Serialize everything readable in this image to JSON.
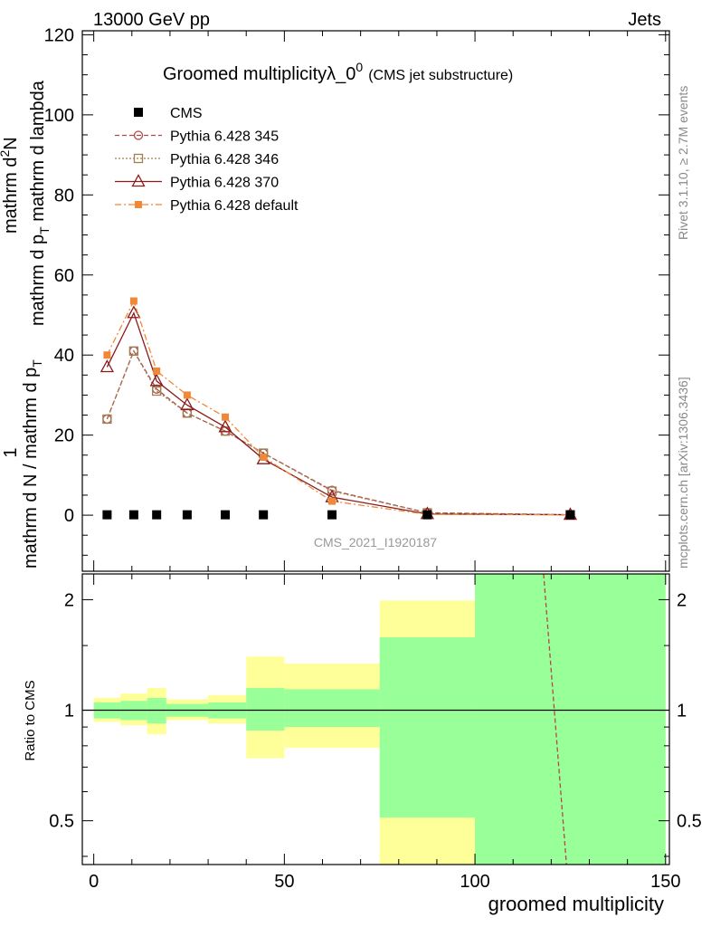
{
  "header": {
    "left": "13000 GeV pp",
    "right": "Jets"
  },
  "side_labels": {
    "rivet": "Rivet 3.1.10, ≥ 2.7M events",
    "mcplots": "mcplots.cern.ch [arXiv:1306.3436]"
  },
  "chart_data": [
    {
      "type": "line",
      "title_main": "Groomed multiplicityλ_0",
      "title_sup": "0",
      "title_sub": "(CMS jet substructure)",
      "ylabel_lines": [
        "1",
        "mathrm d N / mathrm d p",
        "T",
        "mathrm d N",
        "mathrm d p",
        "T",
        "mathrm d lambda"
      ],
      "ylabel_num": "mathrm d",
      "ylabel_num_sup": "2",
      "ylabel_num_n": "N",
      "ylabel_den_a": "mathrm d p",
      "ylabel_den_sub": "T",
      "ylabel_den_b": " mathrm d lambda",
      "ylabel_left_a": "mathrm d N / mathrm d p",
      "ylabel_left_sub": "T",
      "ylim": [
        -14,
        121
      ],
      "yticks": [
        0,
        20,
        40,
        60,
        80,
        100,
        120
      ],
      "ytick_labels": [
        "0",
        "20",
        "40",
        "60",
        "80",
        "100",
        "120"
      ],
      "watermark": "CMS_2021_I1920187",
      "x": [
        3.5,
        10.5,
        16.5,
        24.5,
        34.5,
        44.5,
        62.5,
        87.5,
        125
      ],
      "series": [
        {
          "name": "CMS",
          "values": [
            0.1,
            0.1,
            0.1,
            0.1,
            0.1,
            0.1,
            0.1,
            0.1,
            0.1
          ],
          "color": "#000000",
          "marker": "square-filled"
        },
        {
          "name": "Pythia 6.428 345",
          "values": [
            24.0,
            41.0,
            31.5,
            25.5,
            21.0,
            15.5,
            6.2,
            0.6,
            0.1
          ],
          "color": "#b2474a",
          "marker": "circle-open",
          "dash": "dashed"
        },
        {
          "name": "Pythia 6.428 346",
          "values": [
            24.0,
            41.0,
            31.0,
            25.5,
            21.0,
            15.5,
            6.0,
            0.6,
            0.1
          ],
          "color": "#a08050",
          "marker": "square-open",
          "dash": "dotted"
        },
        {
          "name": "Pythia 6.428 370",
          "values": [
            37.0,
            50.5,
            33.5,
            27.5,
            22.0,
            14.0,
            4.5,
            0.3,
            0.1
          ],
          "color": "#8b1a1a",
          "marker": "triangle-open",
          "dash": "solid"
        },
        {
          "name": "Pythia 6.428 default",
          "values": [
            40.0,
            53.5,
            36.0,
            30.0,
            24.5,
            14.5,
            3.5,
            0.2,
            0.1
          ],
          "color": "#f0883a",
          "marker": "square-filled-small",
          "dash": "dashdot"
        }
      ]
    },
    {
      "type": "area",
      "ylabel": "Ratio to CMS",
      "xlabel": "groomed multiplicity",
      "xlim": [
        -3,
        151
      ],
      "xticks": [
        0,
        50,
        100,
        150
      ],
      "xtick_labels": [
        "0",
        "50",
        "100",
        "150"
      ],
      "ylim": [
        0.38,
        2.35
      ],
      "yticks": [
        0.5,
        1,
        2
      ],
      "ytick_labels": [
        "0.5",
        "1",
        "2"
      ],
      "bin_edges": [
        0,
        7,
        14,
        19,
        30,
        40,
        50,
        75,
        100,
        150
      ],
      "stat_band_low": [
        0.95,
        0.94,
        0.92,
        0.96,
        0.95,
        0.88,
        0.9,
        0.51,
        0.38
      ],
      "stat_band_high": [
        1.05,
        1.06,
        1.08,
        1.04,
        1.05,
        1.15,
        1.14,
        1.58,
        2.35
      ],
      "total_band_low": [
        0.93,
        0.91,
        0.86,
        0.94,
        0.92,
        0.74,
        0.79,
        0.38,
        0.38
      ],
      "total_band_high": [
        1.08,
        1.11,
        1.15,
        1.07,
        1.1,
        1.4,
        1.34,
        1.99,
        2.35
      ],
      "ratio_line": {
        "name": "Pythia 6.428 345",
        "x": [
          118,
          124
        ],
        "y": [
          2.35,
          0.38
        ]
      }
    }
  ]
}
